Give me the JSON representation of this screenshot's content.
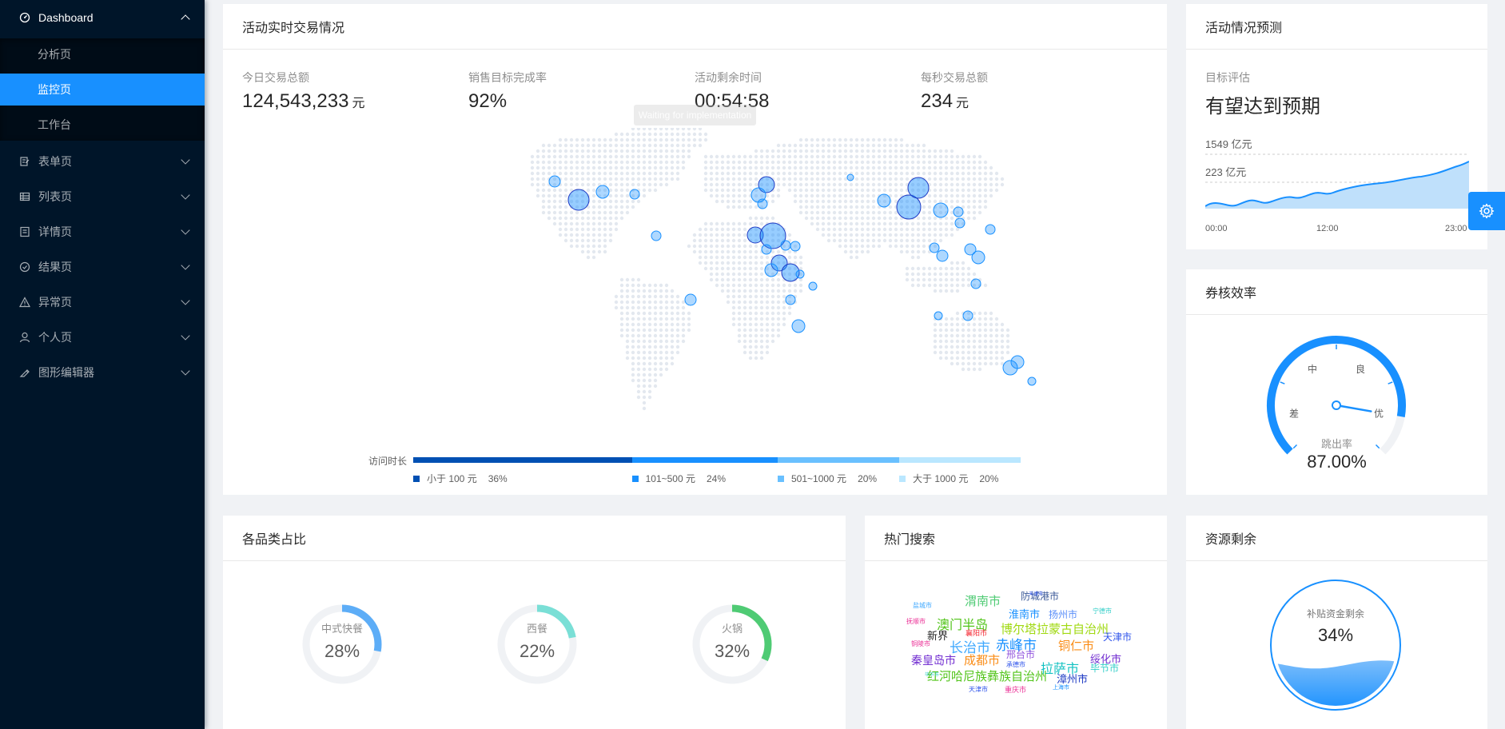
{
  "sidebar": {
    "dashboard": "Dashboard",
    "sub_items": [
      "分析页",
      "监控页",
      "工作台"
    ],
    "items": [
      "表单页",
      "列表页",
      "详情页",
      "结果页",
      "异常页",
      "个人页",
      "图形编辑器"
    ],
    "icons": [
      "form-icon",
      "table-icon",
      "profile-icon",
      "check-circle-icon",
      "warning-icon",
      "user-icon",
      "highlight-icon"
    ]
  },
  "realtime": {
    "title": "活动实时交易情况",
    "stats": [
      {
        "label": "今日交易总额",
        "value": "124,543,233",
        "unit": "元"
      },
      {
        "label": "销售目标完成率",
        "value": "92%",
        "unit": ""
      },
      {
        "label": "活动剩余时间",
        "value": "00:54:58",
        "unit": ""
      },
      {
        "label": "每秒交易总额",
        "value": "234",
        "unit": "元"
      }
    ],
    "tooltip": "Waiting for implementation",
    "visit_label": "访问时长",
    "legend": [
      {
        "label": "小于 100 元",
        "pct": "36%",
        "value": 36,
        "color": "#0050b3"
      },
      {
        "label": "101~500 元",
        "pct": "24%",
        "value": 24,
        "color": "#1890ff"
      },
      {
        "label": "501~1000 元",
        "pct": "20%",
        "value": 20,
        "color": "#69c0ff"
      },
      {
        "label": "大于 1000 元",
        "pct": "20%",
        "value": 20,
        "color": "#bae7ff"
      }
    ]
  },
  "forecast": {
    "title": "活动情况预测",
    "label": "目标评估",
    "value": "有望达到预期",
    "mark_high": "1549 亿元",
    "mark_low": "223 亿元",
    "x_ticks": [
      "00:00",
      "12:00",
      "23:00"
    ]
  },
  "efficiency": {
    "title": "券核效率",
    "gauge_labels": [
      "差",
      "中",
      "良",
      "优"
    ],
    "metric_label": "跳出率",
    "metric_value": "87.00%",
    "percent": 87
  },
  "categories": {
    "title": "各品类占比",
    "items": [
      {
        "name": "中式快餐",
        "pct": "28%",
        "value": 28,
        "color": "#5dadf7"
      },
      {
        "name": "西餐",
        "pct": "22%",
        "value": 22,
        "color": "#7adfd6"
      },
      {
        "name": "火锅",
        "pct": "32%",
        "value": 32,
        "color": "#4fcb74"
      }
    ]
  },
  "hot_search": {
    "title": "热门搜索",
    "words": [
      {
        "t": "盐城市",
        "c": "#40a9ff"
      },
      {
        "t": "渭南市",
        "c": "#4fcb74"
      },
      {
        "t": "防城港市",
        "c": "#3b5998"
      },
      {
        "t": "淮南市",
        "c": "#1890ff"
      },
      {
        "t": "扬州市",
        "c": "#5b8ff9"
      },
      {
        "t": "宁德市",
        "c": "#36cfc9"
      },
      {
        "t": "抚顺市",
        "c": "#eb2f96"
      },
      {
        "t": "澳门半岛",
        "c": "#52c41a"
      },
      {
        "t": "襄阳市",
        "c": "#f5222d"
      },
      {
        "t": "博尔塔拉蒙古自治州",
        "c": "#a0d911"
      },
      {
        "t": "新界",
        "c": "#262626"
      },
      {
        "t": "铜陵市",
        "c": "#eb2f96"
      },
      {
        "t": "长治市",
        "c": "#40a9ff"
      },
      {
        "t": "赤峰市",
        "c": "#1890ff"
      },
      {
        "t": "铜仁市",
        "c": "#fa8c16"
      },
      {
        "t": "天津市",
        "c": "#2f54eb"
      },
      {
        "t": "秦皇岛市",
        "c": "#722ed1"
      },
      {
        "t": "成都市",
        "c": "#fa8c16"
      },
      {
        "t": "邢台市",
        "c": "#9254de"
      },
      {
        "t": "绥化市",
        "c": "#722ed1"
      },
      {
        "t": "承德市",
        "c": "#2f54eb"
      },
      {
        "t": "拉萨市",
        "c": "#13c2c2"
      },
      {
        "t": "毕节市",
        "c": "#36cfc9"
      },
      {
        "t": "红河哈尼族彝族自治州",
        "c": "#52c41a"
      },
      {
        "t": "漳州市",
        "c": "#1d39c4"
      },
      {
        "t": "天津市",
        "c": "#2f54eb"
      },
      {
        "t": "重庆市",
        "c": "#eb2f96"
      },
      {
        "t": "上海市",
        "c": "#1890ff"
      },
      {
        "t": "毕节市",
        "c": "#36cfc9"
      },
      {
        "t": "天津市",
        "c": "#2f54eb"
      }
    ]
  },
  "resource": {
    "title": "资源剩余",
    "label": "补贴资金剩余",
    "value": "34%",
    "percent": 34
  }
}
